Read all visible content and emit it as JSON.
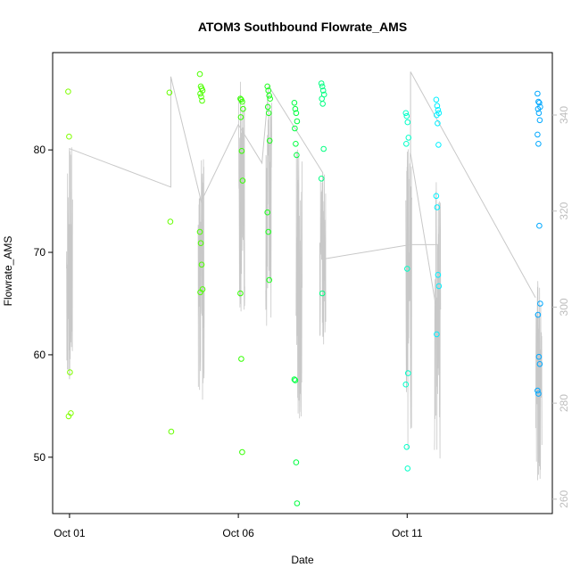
{
  "chart_data": {
    "type": "scatter",
    "title": "ATOM3 Southbound Flowrate_AMS",
    "xlabel": "Date",
    "ylabel": "Flowrate_AMS",
    "x_ticks": [
      {
        "label": "Oct 01",
        "day": 1
      },
      {
        "label": "Oct 06",
        "day": 6
      },
      {
        "label": "Oct 11",
        "day": 11
      }
    ],
    "xlim_day": [
      0.5,
      15.3
    ],
    "ylim": [
      44.5,
      89.5
    ],
    "y_ticks": [
      50,
      60,
      70,
      80
    ],
    "y2lim": [
      257,
      353
    ],
    "y2_ticks": [
      260,
      280,
      300,
      320,
      340
    ],
    "grid": false,
    "legend": "none",
    "colors": {
      "axis": "#000000",
      "secondary_axis": "#bebebe",
      "trace_line": "#c8c8c8",
      "frame": "#000000"
    },
    "point_series": [
      {
        "day": 1.0,
        "color": "#80ff00",
        "values": [
          85.7,
          81.3,
          58.3,
          54.3,
          54.0
        ]
      },
      {
        "day": 4.0,
        "color": "#66ff00",
        "values": [
          85.6,
          73.0,
          52.5
        ]
      },
      {
        "day": 4.9,
        "color": "#4dff00",
        "values": [
          87.4,
          86.2,
          86.0,
          85.8,
          85.5,
          85.2,
          84.8,
          72.0,
          70.9,
          68.8,
          66.4,
          66.1
        ]
      },
      {
        "day": 6.1,
        "color": "#33ff00",
        "values": [
          85.0,
          84.9,
          84.7,
          84.0,
          83.2,
          79.9,
          77.0,
          66.0,
          59.6,
          50.5
        ]
      },
      {
        "day": 6.9,
        "color": "#1aff1a",
        "values": [
          86.2,
          85.8,
          85.3,
          85.0,
          84.2,
          83.6,
          80.9,
          73.9,
          72.0,
          67.3
        ]
      },
      {
        "day": 7.7,
        "color": "#00ff40",
        "values": [
          84.6,
          84.0,
          83.6,
          82.8,
          82.1,
          80.6,
          79.5,
          57.6,
          57.5,
          49.5,
          45.5
        ]
      },
      {
        "day": 8.5,
        "color": "#00ff80",
        "values": [
          86.5,
          86.2,
          85.8,
          85.4,
          85.0,
          84.5,
          80.1,
          77.2,
          66.0
        ]
      },
      {
        "day": 11.0,
        "color": "#00ffc8",
        "values": [
          83.6,
          83.3,
          82.7,
          81.2,
          80.6,
          68.4,
          58.2,
          57.1,
          51.0,
          48.9
        ]
      },
      {
        "day": 11.9,
        "color": "#00f0ff",
        "values": [
          84.9,
          84.3,
          83.9,
          83.6,
          83.4,
          82.6,
          80.5,
          75.5,
          74.4,
          67.8,
          66.7,
          62.0
        ]
      },
      {
        "day": 14.9,
        "color": "#00a8ff",
        "values": [
          85.5,
          84.7,
          84.6,
          84.2,
          84.0,
          83.6,
          82.9,
          81.5,
          80.6,
          72.6,
          65.0,
          63.9,
          59.8,
          59.1,
          56.5,
          56.2
        ]
      }
    ],
    "secondary_series": {
      "name": "",
      "axis": "right",
      "points": [
        [
          1.0,
          285
        ],
        [
          1.0,
          333
        ],
        [
          4.0,
          325
        ],
        [
          4.0,
          348
        ],
        [
          4.9,
          322
        ],
        [
          6.0,
          338
        ],
        [
          6.7,
          330
        ],
        [
          6.9,
          346
        ],
        [
          8.5,
          328
        ],
        [
          8.5,
          310
        ],
        [
          11.1,
          313
        ],
        [
          11.9,
          313
        ],
        [
          11.9,
          298
        ],
        [
          11.1,
          332
        ],
        [
          11.1,
          349
        ],
        [
          14.8,
          302
        ]
      ],
      "bursts": [
        {
          "day": 1.0,
          "min": 283,
          "max": 334
        },
        {
          "day": 4.9,
          "min": 280,
          "max": 332
        },
        {
          "day": 6.1,
          "min": 298,
          "max": 347
        },
        {
          "day": 6.9,
          "min": 296,
          "max": 343
        },
        {
          "day": 7.8,
          "min": 276,
          "max": 334
        },
        {
          "day": 8.5,
          "min": 291,
          "max": 328
        },
        {
          "day": 11.05,
          "min": 270,
          "max": 333
        },
        {
          "day": 11.9,
          "min": 267,
          "max": 330
        },
        {
          "day": 14.9,
          "min": 263,
          "max": 306
        }
      ]
    }
  }
}
